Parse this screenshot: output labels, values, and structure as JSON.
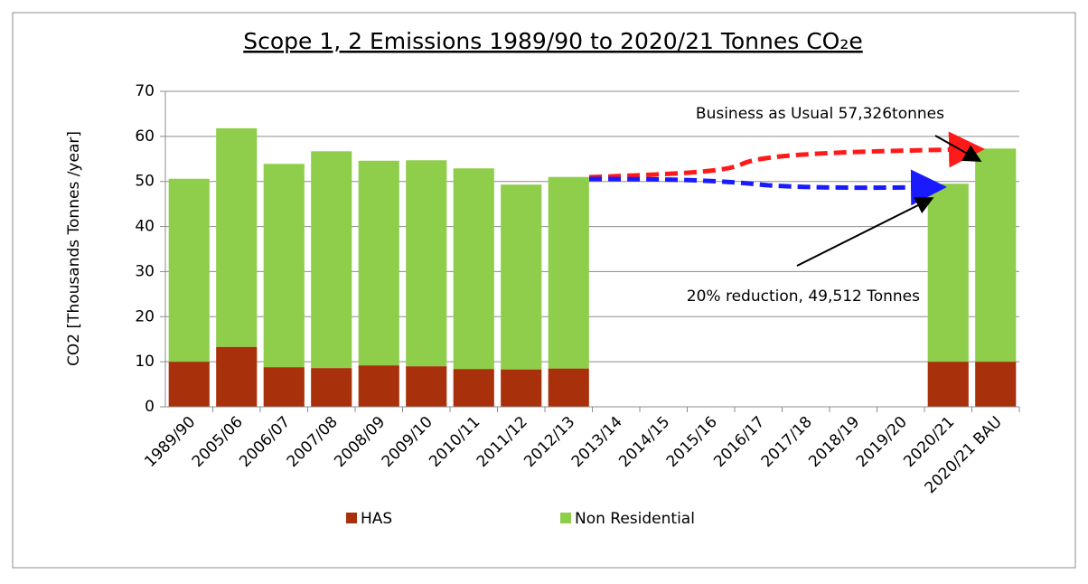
{
  "chart_data": {
    "type": "stacked_bar",
    "title": "Scope 1, 2 Emissions 1989/90 to 2020/21 Tonnes CO₂e",
    "y_label": "CO2 [Thousands Tonnes /year]",
    "categories": [
      "1989/90",
      "2005/06",
      "2006/07",
      "2007/08",
      "2008/09",
      "2009/10",
      "2010/11",
      "2011/12",
      "2012/13",
      "2013/14",
      "2014/15",
      "2015/16",
      "2016/17",
      "2017/18",
      "2018/19",
      "2019/20",
      "2020/21",
      "2020/21 BAU"
    ],
    "series": [
      {
        "name": "HAS",
        "color": "#a8300a",
        "values": [
          10,
          13.3,
          8.8,
          8.6,
          9.2,
          9.0,
          8.4,
          8.3,
          8.5,
          null,
          null,
          null,
          null,
          null,
          null,
          null,
          10,
          10
        ]
      },
      {
        "name": "Non Residential",
        "color": "#8fce4a",
        "values": [
          40.6,
          48.5,
          45.1,
          48.1,
          45.4,
          45.7,
          44.5,
          41.0,
          42.5,
          null,
          null,
          null,
          null,
          null,
          null,
          null,
          39.5,
          47.3
        ]
      }
    ],
    "annotations": [
      "Business as Usual 57,326tonnes",
      "20% reduction, 49,512 Tonnes"
    ],
    "ylim": [
      0,
      70
    ],
    "yticks": [
      0,
      10,
      20,
      30,
      40,
      50,
      60,
      70
    ],
    "grid": true,
    "legend": "bottom"
  }
}
